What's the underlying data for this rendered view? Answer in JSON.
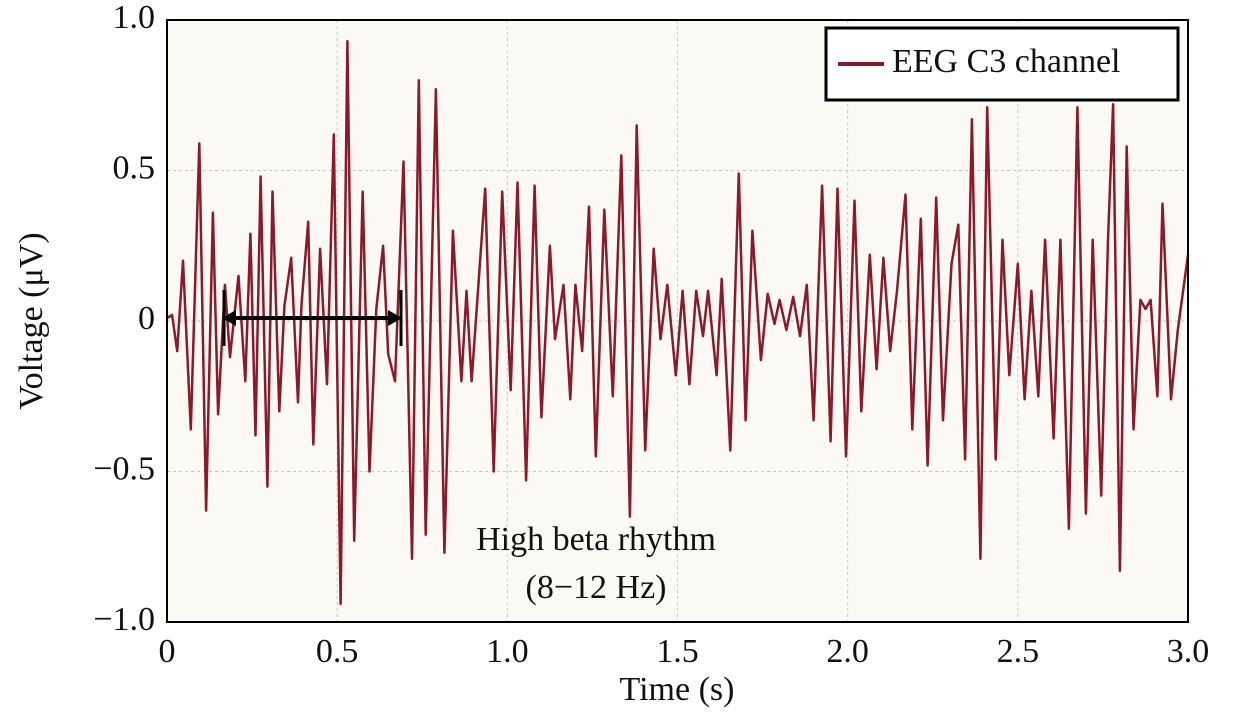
{
  "chart_data": {
    "type": "line",
    "xlabel": "Time (s)",
    "ylabel": "Voltage (μV)",
    "annotation": [
      "High beta rhythm",
      "(8−12 Hz)"
    ],
    "legend_position": "upper right",
    "grid": true,
    "xlim": [
      0,
      3
    ],
    "ylim": [
      -1,
      1
    ],
    "xticks": [
      0,
      0.5,
      {
        "value": 1,
        "label": "1.0"
      },
      1.5,
      {
        "value": 2,
        "label": "2.0"
      },
      2.5,
      {
        "value": 3,
        "label": "3.0"
      }
    ],
    "yticks": [
      {
        "value": 1,
        "label": "1.0"
      },
      {
        "value": 0.5,
        "label": "0.5"
      },
      0,
      {
        "value": -0.5,
        "label": "−0.5"
      },
      {
        "value": -1,
        "label": "−1.0"
      }
    ],
    "x": [
      0,
      0.015,
      0.03,
      0.047,
      0.07,
      0.095,
      0.115,
      0.135,
      0.15,
      0.17,
      0.185,
      0.21,
      0.23,
      0.245,
      0.26,
      0.275,
      0.295,
      0.31,
      0.33,
      0.345,
      0.365,
      0.385,
      0.395,
      0.415,
      0.43,
      0.45,
      0.47,
      0.49,
      0.51,
      0.53,
      0.55,
      0.575,
      0.595,
      0.615,
      0.635,
      0.65,
      0.67,
      0.695,
      0.72,
      0.74,
      0.76,
      0.79,
      0.815,
      0.84,
      0.865,
      0.88,
      0.895,
      0.915,
      0.935,
      0.96,
      0.985,
      1.01,
      1.03,
      1.055,
      1.08,
      1.1,
      1.125,
      1.14,
      1.165,
      1.185,
      1.2,
      1.22,
      1.24,
      1.26,
      1.285,
      1.31,
      1.335,
      1.36,
      1.38,
      1.405,
      1.43,
      1.45,
      1.47,
      1.495,
      1.515,
      1.535,
      1.555,
      1.575,
      1.59,
      1.615,
      1.63,
      1.655,
      1.68,
      1.7,
      1.72,
      1.745,
      1.765,
      1.785,
      1.8,
      1.82,
      1.84,
      1.86,
      1.88,
      1.9,
      1.925,
      1.95,
      1.97,
      1.995,
      2.02,
      2.04,
      2.065,
      2.085,
      2.105,
      2.125,
      2.145,
      2.17,
      2.19,
      2.215,
      2.235,
      2.26,
      2.28,
      2.305,
      2.325,
      2.345,
      2.365,
      2.39,
      2.41,
      2.435,
      2.455,
      2.475,
      2.5,
      2.52,
      2.54,
      2.56,
      2.58,
      2.605,
      2.625,
      2.65,
      2.675,
      2.7,
      2.72,
      2.745,
      2.765,
      2.78,
      2.8,
      2.82,
      2.84,
      2.86,
      2.875,
      2.89,
      2.91,
      2.925,
      2.95,
      2.97,
      3.0
    ],
    "series": [
      {
        "name": "EEG C3 channel",
        "color": "#8b1a2b",
        "values": [
          0.01,
          0.02,
          -0.1,
          0.2,
          -0.36,
          0.59,
          -0.63,
          0.36,
          -0.31,
          0.12,
          -0.12,
          0.15,
          -0.2,
          0.29,
          -0.38,
          0.48,
          -0.55,
          0.43,
          -0.3,
          0.05,
          0.21,
          -0.27,
          0.05,
          0.33,
          -0.41,
          0.24,
          -0.21,
          0.62,
          -0.94,
          0.93,
          -0.73,
          0.43,
          -0.5,
          0.04,
          0.25,
          -0.11,
          -0.2,
          0.53,
          -0.79,
          0.8,
          -0.71,
          0.77,
          -0.77,
          0.3,
          -0.2,
          0.1,
          -0.2,
          0.12,
          0.44,
          -0.5,
          0.43,
          -0.23,
          0.46,
          -0.53,
          0.45,
          -0.32,
          0.25,
          -0.06,
          0.12,
          -0.26,
          0.12,
          -0.1,
          0.38,
          -0.45,
          0.37,
          -0.25,
          0.55,
          -0.65,
          0.65,
          -0.43,
          0.24,
          -0.06,
          0.12,
          -0.18,
          0.1,
          -0.21,
          0.1,
          -0.05,
          0.1,
          -0.18,
          0.14,
          -0.43,
          0.49,
          -0.33,
          0.3,
          -0.13,
          0.09,
          -0.01,
          0.07,
          -0.03,
          0.08,
          -0.05,
          0.12,
          -0.33,
          0.45,
          -0.4,
          0.44,
          -0.45,
          0.4,
          -0.3,
          0.22,
          -0.16,
          0.21,
          -0.1,
          0.1,
          0.42,
          -0.36,
          0.34,
          -0.48,
          0.41,
          -0.33,
          0.19,
          0.32,
          -0.46,
          0.67,
          -0.79,
          0.71,
          -0.46,
          0.27,
          -0.18,
          0.19,
          -0.26,
          0.1,
          -0.25,
          0.27,
          -0.39,
          0.27,
          -0.69,
          0.71,
          -0.64,
          0.27,
          -0.58,
          0.27,
          0.72,
          -0.83,
          0.58,
          -0.36,
          0.07,
          0.04,
          0.07,
          -0.25,
          0.39,
          -0.26,
          -0.03,
          0.22
        ]
      }
    ]
  }
}
